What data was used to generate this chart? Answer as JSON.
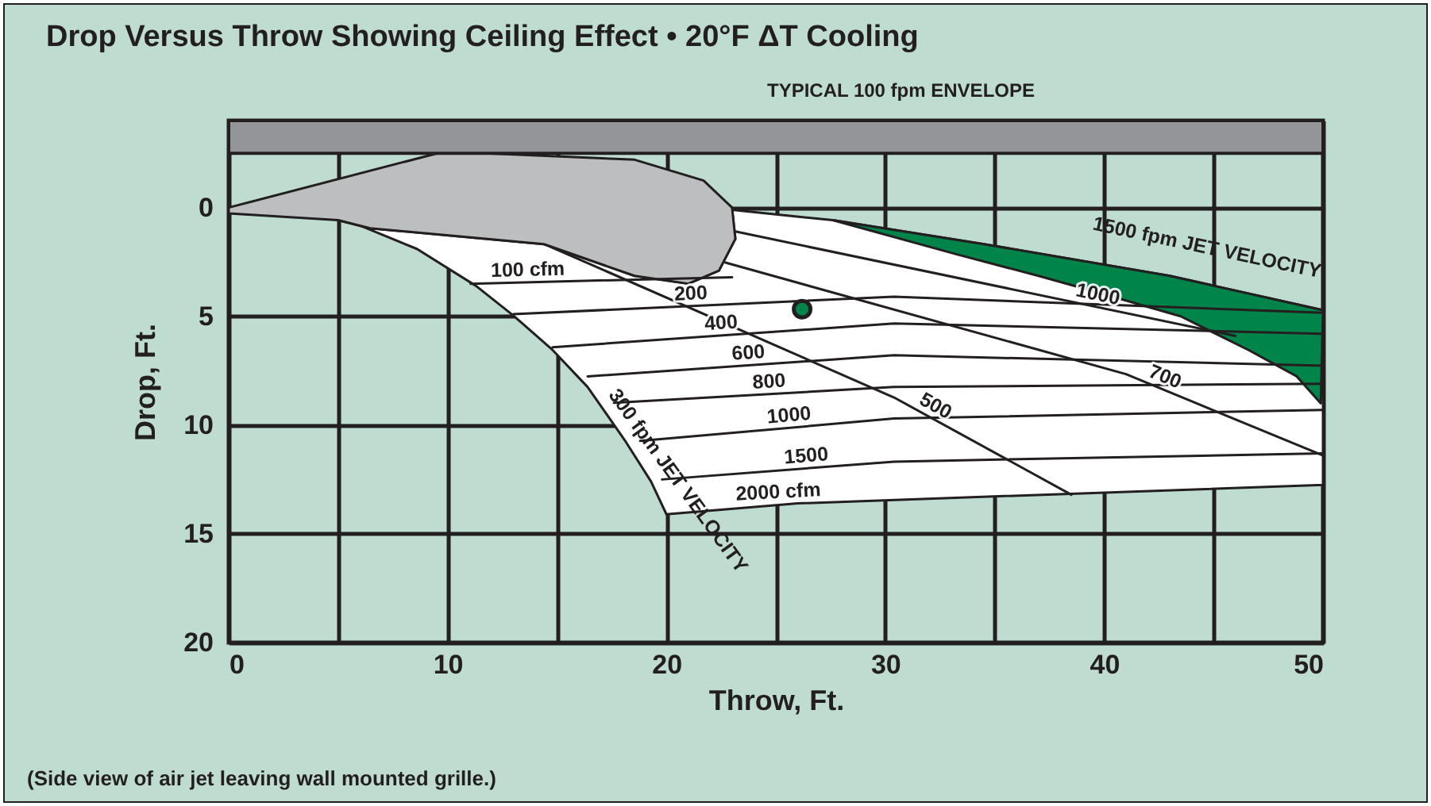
{
  "chart_data": {
    "type": "line",
    "title": "Drop Versus Throw Showing Ceiling Effect • 20°F ΔT Cooling",
    "xlabel": "Throw, Ft.",
    "ylabel": "Drop, Ft.",
    "xlim": [
      0,
      50
    ],
    "ylim": [
      20,
      -4
    ],
    "xticks": [
      0,
      {
        "value": 5,
        "label": null
      },
      10,
      {
        "value": 15,
        "label": null
      },
      20,
      {
        "value": 25,
        "label": null
      },
      30,
      {
        "value": 35,
        "label": null
      },
      40,
      {
        "value": 45,
        "label": null
      },
      50
    ],
    "yticks": [
      0,
      5,
      10,
      15,
      20
    ],
    "grid": true,
    "bands": [
      {
        "axis": "y",
        "from": -4,
        "to": -2.5,
        "label": null,
        "color": "#939598"
      }
    ],
    "series": [
      {
        "type": "area",
        "color": "#ffffff",
        "x": [
          5.0,
          6.46,
          14.4,
          18.55,
          21.0,
          22.4,
          23.15,
          23.0,
          27.6,
          34.5,
          43.0,
          50,
          50,
          26.0,
          20.0,
          19.3,
          18.1,
          16.4,
          14.8,
          13.0,
          11.3,
          8.6,
          5.7,
          5.0
        ],
        "values": [
          0.58,
          0.95,
          1.68,
          3.14,
          3.5,
          2.9,
          1.44,
          0.1,
          0.58,
          1.68,
          3.14,
          4.72,
          12.75,
          13.6,
          14.1,
          12.6,
          10.7,
          8.25,
          6.55,
          4.96,
          3.6,
          1.9,
          0.7,
          0.58
        ]
      },
      {
        "type": "area",
        "color": "#00844a",
        "x": [
          27.6,
          34.5,
          43.0,
          50,
          49.9,
          48.8,
          46.6,
          43.5,
          39.6,
          37.0,
          33.3,
          27.6
        ],
        "values": [
          0.58,
          1.68,
          3.14,
          4.72,
          9.0,
          7.76,
          6.55,
          5.0,
          3.87,
          3.14,
          2.16,
          0.58
        ]
      },
      {
        "type": "area",
        "color": "#bcbec0",
        "x": [
          0,
          9.85,
          18.55,
          21.7,
          23.0,
          23.15,
          22.4,
          21.0,
          18.55,
          14.4,
          6.46,
          5.0,
          0,
          0
        ],
        "values": [
          0,
          -2.58,
          -2.2,
          -1.24,
          0,
          1.44,
          2.9,
          3.5,
          3.14,
          1.68,
          0.95,
          0.58,
          0.27,
          0
        ]
      },
      {
        "name": "100 cfm",
        "color": "#231f20",
        "x": [
          11.05,
          23.0
        ],
        "values": [
          3.5,
          3.2
        ]
      },
      {
        "name": "200",
        "color": "#231f20",
        "x": [
          13.0,
          30.4,
          50
        ],
        "values": [
          4.9,
          4.1,
          4.84
        ]
      },
      {
        "name": "400",
        "color": "#231f20",
        "x": [
          14.8,
          30.4,
          50
        ],
        "values": [
          6.42,
          5.33,
          5.8
        ]
      },
      {
        "name": "600",
        "color": "#231f20",
        "x": [
          16.4,
          30.4,
          50
        ],
        "values": [
          7.76,
          6.79,
          7.27
        ]
      },
      {
        "name": "800",
        "color": "#231f20",
        "x": [
          17.6,
          30.4,
          50
        ],
        "values": [
          8.98,
          8.25,
          8.1
        ]
      },
      {
        "name": "1000",
        "color": "#231f20",
        "x": [
          18.8,
          30.4,
          50
        ],
        "values": [
          10.73,
          9.7,
          9.3
        ]
      },
      {
        "name": "1500",
        "color": "#231f20",
        "x": [
          19.8,
          30.4,
          50
        ],
        "values": [
          12.5,
          11.68,
          11.3
        ]
      },
      {
        "name": "500",
        "color": "#231f20",
        "x": [
          14.7,
          30.4,
          38.5
        ],
        "values": [
          1.8,
          8.73,
          13.2
        ]
      },
      {
        "name": "700",
        "color": "#231f20",
        "x": [
          22.7,
          41.0,
          50
        ],
        "values": [
          2.53,
          7.66,
          11.4
        ]
      },
      {
        "name": "1000",
        "color": "#231f20",
        "x": [
          23.15,
          46.0
        ],
        "values": [
          1.1,
          5.9
        ]
      },
      {
        "type": "scatter",
        "color": "#00844a",
        "marker": "circle",
        "x": [
          26.2
        ],
        "values": [
          4.67
        ]
      }
    ],
    "annotations": [
      "TYPICAL 100 fpm ENVELOPE",
      "2000 cfm",
      "300 fpm JET VELOCITY",
      "1500 fpm JET VELOCITY",
      "(Side view of air jet leaving wall mounted grille.)"
    ]
  }
}
